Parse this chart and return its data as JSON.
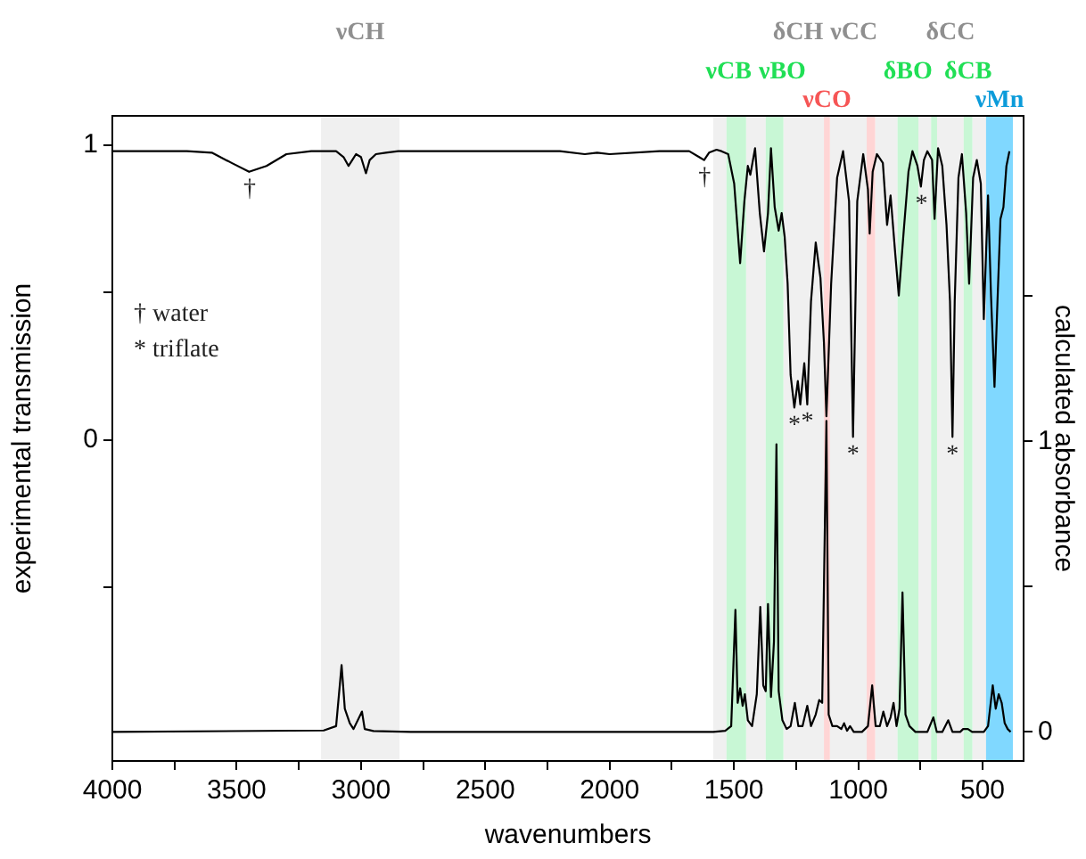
{
  "chart_data": {
    "type": "line",
    "xlabel": "wavenumbers",
    "ylabel": "experimental transmission",
    "y2label": "calculated absorbance",
    "xlim": [
      4000,
      335
    ],
    "xticks": [
      4000,
      {
        "value": 3750,
        "label": null
      },
      3500,
      {
        "value": 3250,
        "label": null
      },
      3000,
      {
        "value": 2750,
        "label": null
      },
      2500,
      {
        "value": 2250,
        "label": null
      },
      2000,
      {
        "value": 1750,
        "label": null
      },
      1500,
      {
        "value": 1250,
        "label": null
      },
      1000,
      {
        "value": 750,
        "label": null
      },
      500
    ],
    "ylim": [
      -1.09,
      1.1
    ],
    "yticks": [
      {
        "value": -0.5,
        "label": null
      },
      0,
      {
        "value": 0.5,
        "label": null
      },
      1
    ],
    "y2lim": [
      -0.1,
      2.12
    ],
    "y2ticks": [
      0,
      {
        "value": 0.5,
        "label": null
      },
      1,
      {
        "value": 1.5,
        "label": null
      }
    ],
    "grid": false,
    "legend": false,
    "bands": [
      {
        "axis": "x",
        "from": 1583,
        "to": 1530,
        "color": "#f0f0f0"
      },
      {
        "axis": "x",
        "from": 1451,
        "to": 1372,
        "color": "#f0f0f0"
      },
      {
        "axis": "x",
        "from": 1301,
        "to": 1138,
        "color": "#f0f0f0",
        "label": "δCH"
      },
      {
        "axis": "x",
        "from": 1114,
        "to": 966,
        "color": "#f0f0f0",
        "label": "νCC"
      },
      {
        "axis": "x",
        "from": 932,
        "to": 842,
        "color": "#f0f0f0"
      },
      {
        "axis": "x",
        "from": 758,
        "to": 707,
        "color": "#f0f0f0"
      },
      {
        "axis": "x",
        "from": 683,
        "to": 576,
        "color": "#f0f0f0",
        "label": "δCC"
      },
      {
        "axis": "x",
        "from": 541,
        "to": 486,
        "color": "#f0f0f0"
      },
      {
        "axis": "x",
        "from": 3161,
        "to": 2845,
        "color": "#f0f0f0",
        "label": "νCH"
      },
      {
        "axis": "x",
        "from": 1530,
        "to": 1451,
        "color": "#c8f7d5",
        "label": "νCB"
      },
      {
        "axis": "x",
        "from": 1372,
        "to": 1301,
        "color": "#c8f7d5",
        "label": "νBO"
      },
      {
        "axis": "x",
        "from": 1138,
        "to": 1114,
        "color": "#ffd5d5",
        "label": "νCO"
      },
      {
        "axis": "x",
        "from": 966,
        "to": 932,
        "color": "#ffd5d5"
      },
      {
        "axis": "x",
        "from": 842,
        "to": 758,
        "color": "#c8f7d5",
        "label": "δBO"
      },
      {
        "axis": "x",
        "from": 707,
        "to": 683,
        "color": "#c8f7d5"
      },
      {
        "axis": "x",
        "from": 576,
        "to": 541,
        "color": "#c8f7d5",
        "label": "δCB"
      },
      {
        "axis": "x",
        "from": 486,
        "to": 378,
        "color": "#80d8ff",
        "label": "νMn"
      }
    ],
    "annotations": [
      "† water",
      "* triflate",
      {
        "text": "†",
        "x": 3448,
        "y": 0.91
      },
      {
        "text": "†",
        "x": 1618,
        "y": 0.95
      },
      {
        "text": "*",
        "x": 1257,
        "y": 0.11
      },
      {
        "text": "*",
        "x": 1205,
        "y": 0.12
      },
      {
        "text": "*",
        "x": 1021,
        "y": 0.01
      },
      {
        "text": "*",
        "x": 746,
        "y": 0.86
      },
      {
        "text": "*",
        "x": 621,
        "y": 0.01
      }
    ],
    "series": [
      {
        "color": "#000000",
        "axis": "y",
        "x": [
          4000,
          3700,
          3600,
          3520,
          3450,
          3380,
          3300,
          3200,
          3100,
          3070,
          3050,
          3035,
          3020,
          3000,
          2980,
          2965,
          2940,
          2900,
          2850,
          2500,
          2200,
          2100,
          2050,
          2000,
          1800,
          1680,
          1640,
          1620,
          1600,
          1570,
          1550,
          1523,
          1499,
          1475,
          1458,
          1444,
          1434,
          1415,
          1396,
          1379,
          1363,
          1351,
          1336,
          1320,
          1308,
          1296,
          1284,
          1272,
          1257,
          1243,
          1233,
          1217,
          1205,
          1190,
          1171,
          1152,
          1138,
          1128,
          1109,
          1085,
          1061,
          1037,
          1021,
          1004,
          980,
          961,
          954,
          942,
          925,
          901,
          884,
          870,
          851,
          837,
          817,
          798,
          782,
          762,
          748,
          736,
          722,
          703,
          693,
          679,
          662,
          645,
          631,
          621,
          612,
          597,
          583,
          566,
          554,
          538,
          523,
          507,
          495,
          478,
          466,
          452,
          440,
          428,
          416,
          404,
          392
        ],
        "values": [
          0.98,
          0.98,
          0.975,
          0.94,
          0.91,
          0.93,
          0.97,
          0.98,
          0.98,
          0.96,
          0.93,
          0.95,
          0.97,
          0.96,
          0.905,
          0.95,
          0.97,
          0.975,
          0.98,
          0.98,
          0.98,
          0.97,
          0.975,
          0.97,
          0.98,
          0.98,
          0.96,
          0.95,
          0.975,
          0.985,
          0.98,
          0.97,
          0.87,
          0.6,
          0.81,
          0.93,
          0.9,
          0.99,
          0.77,
          0.64,
          0.77,
          0.99,
          0.79,
          0.71,
          0.77,
          0.69,
          0.53,
          0.22,
          0.11,
          0.2,
          0.12,
          0.26,
          0.12,
          0.47,
          0.67,
          0.55,
          0.33,
          0.08,
          0.53,
          0.89,
          0.98,
          0.81,
          0.01,
          0.81,
          0.97,
          0.85,
          0.7,
          0.91,
          0.97,
          0.94,
          0.73,
          0.83,
          0.63,
          0.49,
          0.71,
          0.91,
          0.98,
          0.93,
          0.86,
          0.95,
          0.98,
          0.95,
          0.75,
          0.99,
          0.93,
          0.73,
          0.47,
          0.01,
          0.47,
          0.89,
          0.97,
          0.77,
          0.53,
          0.89,
          0.95,
          0.87,
          0.41,
          0.83,
          0.49,
          0.18,
          0.47,
          0.75,
          0.79,
          0.93,
          0.98
        ]
      },
      {
        "color": "#000000",
        "axis": "y2",
        "x": [
          4000,
          3150,
          3100,
          3078,
          3065,
          3045,
          3030,
          2996,
          2985,
          2950,
          2800,
          1600,
          1583,
          1535,
          1511,
          1494,
          1485,
          1475,
          1465,
          1456,
          1444,
          1427,
          1408,
          1394,
          1382,
          1372,
          1363,
          1351,
          1339,
          1329,
          1320,
          1305,
          1288,
          1272,
          1255,
          1241,
          1224,
          1205,
          1190,
          1171,
          1157,
          1145,
          1128,
          1119,
          1104,
          1085,
          1068,
          1057,
          1045,
          1033,
          1018,
          985,
          961,
          944,
          930,
          913,
          899,
          884,
          870,
          858,
          846,
          834,
          822,
          810,
          794,
          770,
          746,
          722,
          698,
          684,
          662,
          638,
          621,
          590,
          578,
          559,
          542,
          495,
          478,
          459,
          447,
          435,
          423,
          411,
          399,
          387
        ],
        "values": [
          0,
          0.005,
          0.02,
          0.23,
          0.08,
          0.03,
          0.01,
          0.07,
          0.01,
          0.003,
          0,
          0,
          0,
          0.004,
          0.02,
          0.42,
          0.1,
          0.15,
          0.09,
          0.13,
          0.04,
          0.02,
          0.13,
          0.43,
          0.16,
          0.14,
          0.44,
          0.12,
          0.31,
          0.99,
          0.14,
          0.04,
          0.01,
          0.02,
          0.1,
          0.02,
          0.02,
          0.09,
          0.02,
          0.06,
          0.11,
          0.1,
          1.07,
          0.06,
          0.02,
          0.02,
          0.01,
          0.03,
          0.004,
          0.02,
          0,
          0,
          0.02,
          0.16,
          0.02,
          0.02,
          0.07,
          0.02,
          0.05,
          0.1,
          0.02,
          0.08,
          0.48,
          0.06,
          0.02,
          0,
          0,
          0,
          0.05,
          0,
          0,
          0.04,
          0,
          0,
          0.01,
          0.01,
          0,
          0,
          0.02,
          0.16,
          0.08,
          0.13,
          0.1,
          0.03,
          0.01,
          0
        ]
      }
    ]
  }
}
